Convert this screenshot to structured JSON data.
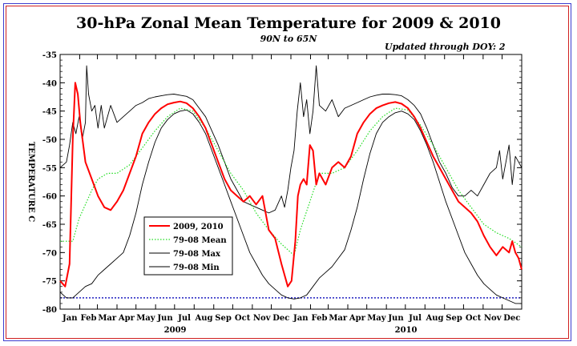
{
  "header": {
    "title": "30-hPa Zonal Mean Temperature for 2009 & 2010",
    "subtitle": "90N to 65N",
    "updated": "Updated through DOY:   2"
  },
  "colors": {
    "red": "#ff0000",
    "green": "#22dd22",
    "black": "#000000",
    "blue": "#2020c0"
  },
  "chart_data": {
    "type": "line",
    "title": "30-hPa Zonal Mean Temperature for 2009 & 2010",
    "ylabel": "TEMPERATURE C",
    "xlabel": "",
    "ylim": [
      -80,
      -35
    ],
    "xlim": [
      0,
      730
    ],
    "yticks": [
      -35,
      -40,
      -45,
      -50,
      -55,
      -60,
      -65,
      -70,
      -75,
      -80
    ],
    "month_labels": [
      "Jan",
      "Feb",
      "Mar",
      "Apr",
      "May",
      "Jun",
      "Jul",
      "Aug",
      "Sep",
      "Oct",
      "Nov",
      "Dec",
      "Jan",
      "Feb",
      "Mar",
      "Apr",
      "May",
      "Jun",
      "Jul",
      "Aug",
      "Sep",
      "Oct",
      "Nov",
      "Dec"
    ],
    "year_labels": [
      {
        "text": "2009",
        "day": 182
      },
      {
        "text": "2010",
        "day": 547
      }
    ],
    "reference_line": {
      "y": -78,
      "style": "dotted"
    },
    "legend_position": "lower-left",
    "series": [
      {
        "name": "2009, 2010",
        "color": "#ff0000",
        "points": [
          [
            0,
            -75
          ],
          [
            8,
            -76
          ],
          [
            15,
            -72
          ],
          [
            20,
            -50
          ],
          [
            24,
            -40
          ],
          [
            28,
            -42
          ],
          [
            32,
            -47
          ],
          [
            40,
            -54
          ],
          [
            50,
            -57
          ],
          [
            60,
            -60
          ],
          [
            70,
            -62
          ],
          [
            80,
            -62.5
          ],
          [
            90,
            -61
          ],
          [
            100,
            -59
          ],
          [
            110,
            -56
          ],
          [
            120,
            -53
          ],
          [
            130,
            -49
          ],
          [
            140,
            -47
          ],
          [
            150,
            -45.5
          ],
          [
            160,
            -44.5
          ],
          [
            170,
            -43.8
          ],
          [
            180,
            -43.5
          ],
          [
            190,
            -43.3
          ],
          [
            200,
            -43.6
          ],
          [
            210,
            -44.5
          ],
          [
            220,
            -46
          ],
          [
            230,
            -48
          ],
          [
            240,
            -51
          ],
          [
            250,
            -54
          ],
          [
            260,
            -57
          ],
          [
            270,
            -59
          ],
          [
            280,
            -60
          ],
          [
            290,
            -61
          ],
          [
            300,
            -60
          ],
          [
            310,
            -61.5
          ],
          [
            320,
            -60
          ],
          [
            330,
            -66
          ],
          [
            340,
            -67.5
          ],
          [
            350,
            -72
          ],
          [
            360,
            -76
          ],
          [
            366,
            -75
          ],
          [
            372,
            -68
          ],
          [
            376,
            -60
          ],
          [
            380,
            -58
          ],
          [
            385,
            -57
          ],
          [
            390,
            -58
          ],
          [
            395,
            -51
          ],
          [
            400,
            -52
          ],
          [
            405,
            -58
          ],
          [
            410,
            -56
          ],
          [
            420,
            -58
          ],
          [
            430,
            -55
          ],
          [
            440,
            -54
          ],
          [
            450,
            -55
          ],
          [
            460,
            -53
          ],
          [
            470,
            -49
          ],
          [
            480,
            -47
          ],
          [
            490,
            -45.5
          ],
          [
            500,
            -44.5
          ],
          [
            510,
            -44
          ],
          [
            520,
            -43.6
          ],
          [
            530,
            -43.4
          ],
          [
            540,
            -43.7
          ],
          [
            550,
            -44.5
          ],
          [
            560,
            -46
          ],
          [
            570,
            -48
          ],
          [
            580,
            -50.5
          ],
          [
            590,
            -53
          ],
          [
            600,
            -55
          ],
          [
            610,
            -57
          ],
          [
            620,
            -59
          ],
          [
            630,
            -61
          ],
          [
            640,
            -62
          ],
          [
            650,
            -63
          ],
          [
            660,
            -64.5
          ],
          [
            670,
            -67
          ],
          [
            680,
            -69
          ],
          [
            690,
            -70.5
          ],
          [
            700,
            -69
          ],
          [
            710,
            -70
          ],
          [
            715,
            -68
          ],
          [
            720,
            -70
          ],
          [
            725,
            -71
          ],
          [
            730,
            -73
          ]
        ]
      },
      {
        "name": "79-08 Mean",
        "color": "#22dd22",
        "points": [
          [
            0,
            -68
          ],
          [
            20,
            -68
          ],
          [
            30,
            -64
          ],
          [
            50,
            -59
          ],
          [
            60,
            -57
          ],
          [
            75,
            -56
          ],
          [
            90,
            -56
          ],
          [
            110,
            -54.5
          ],
          [
            130,
            -51.5
          ],
          [
            150,
            -48.5
          ],
          [
            170,
            -46
          ],
          [
            190,
            -44.5
          ],
          [
            210,
            -45
          ],
          [
            230,
            -48
          ],
          [
            250,
            -52
          ],
          [
            270,
            -56
          ],
          [
            290,
            -59
          ],
          [
            310,
            -63
          ],
          [
            330,
            -66
          ],
          [
            350,
            -68.5
          ],
          [
            365,
            -70
          ],
          [
            370,
            -70.5
          ],
          [
            380,
            -66
          ],
          [
            395,
            -61
          ],
          [
            410,
            -56
          ],
          [
            430,
            -56
          ],
          [
            450,
            -55
          ],
          [
            470,
            -52
          ],
          [
            490,
            -48.5
          ],
          [
            510,
            -46
          ],
          [
            530,
            -44.5
          ],
          [
            550,
            -44.8
          ],
          [
            570,
            -47.5
          ],
          [
            590,
            -51
          ],
          [
            610,
            -55
          ],
          [
            630,
            -59
          ],
          [
            650,
            -62
          ],
          [
            670,
            -65
          ],
          [
            690,
            -66.5
          ],
          [
            710,
            -67.5
          ],
          [
            730,
            -69
          ]
        ]
      },
      {
        "name": "79-08 Max",
        "color": "#000000",
        "points": [
          [
            0,
            -55
          ],
          [
            10,
            -54
          ],
          [
            15,
            -51
          ],
          [
            20,
            -47
          ],
          [
            25,
            -49
          ],
          [
            30,
            -46
          ],
          [
            35,
            -50
          ],
          [
            40,
            -47
          ],
          [
            42,
            -37
          ],
          [
            45,
            -42
          ],
          [
            50,
            -45
          ],
          [
            55,
            -44
          ],
          [
            60,
            -48
          ],
          [
            65,
            -44
          ],
          [
            70,
            -48
          ],
          [
            80,
            -44
          ],
          [
            90,
            -47
          ],
          [
            100,
            -46
          ],
          [
            110,
            -45
          ],
          [
            120,
            -44
          ],
          [
            130,
            -43.5
          ],
          [
            140,
            -42.8
          ],
          [
            150,
            -42.5
          ],
          [
            160,
            -42.3
          ],
          [
            170,
            -42.1
          ],
          [
            180,
            -42.0
          ],
          [
            190,
            -42.2
          ],
          [
            200,
            -42.4
          ],
          [
            210,
            -43
          ],
          [
            220,
            -44.5
          ],
          [
            230,
            -46
          ],
          [
            240,
            -48.5
          ],
          [
            250,
            -51
          ],
          [
            260,
            -54
          ],
          [
            270,
            -57
          ],
          [
            280,
            -59
          ],
          [
            290,
            -61
          ],
          [
            300,
            -61.5
          ],
          [
            310,
            -62
          ],
          [
            320,
            -62.5
          ],
          [
            330,
            -63
          ],
          [
            340,
            -62.5
          ],
          [
            350,
            -60
          ],
          [
            355,
            -62
          ],
          [
            360,
            -59
          ],
          [
            365,
            -55
          ],
          [
            370,
            -52
          ],
          [
            375,
            -45
          ],
          [
            380,
            -40
          ],
          [
            385,
            -46
          ],
          [
            390,
            -43
          ],
          [
            395,
            -49
          ],
          [
            400,
            -45
          ],
          [
            405,
            -37
          ],
          [
            410,
            -44
          ],
          [
            420,
            -45
          ],
          [
            430,
            -43
          ],
          [
            440,
            -46
          ],
          [
            450,
            -44.5
          ],
          [
            460,
            -44
          ],
          [
            470,
            -43.5
          ],
          [
            480,
            -43
          ],
          [
            490,
            -42.5
          ],
          [
            500,
            -42.2
          ],
          [
            510,
            -42
          ],
          [
            520,
            -42
          ],
          [
            530,
            -42.1
          ],
          [
            540,
            -42.3
          ],
          [
            550,
            -43
          ],
          [
            560,
            -44
          ],
          [
            570,
            -45.5
          ],
          [
            580,
            -48
          ],
          [
            590,
            -51
          ],
          [
            600,
            -54
          ],
          [
            610,
            -56
          ],
          [
            620,
            -58.5
          ],
          [
            630,
            -60
          ],
          [
            640,
            -60
          ],
          [
            650,
            -59
          ],
          [
            660,
            -60
          ],
          [
            670,
            -58
          ],
          [
            680,
            -56
          ],
          [
            690,
            -55
          ],
          [
            695,
            -52
          ],
          [
            700,
            -57
          ],
          [
            705,
            -54
          ],
          [
            710,
            -51
          ],
          [
            715,
            -58
          ],
          [
            720,
            -53
          ],
          [
            725,
            -54
          ],
          [
            730,
            -55
          ]
        ]
      },
      {
        "name": "79-08 Min",
        "color": "#000000",
        "points": [
          [
            0,
            -77
          ],
          [
            10,
            -78
          ],
          [
            20,
            -78
          ],
          [
            30,
            -77
          ],
          [
            40,
            -76
          ],
          [
            50,
            -75.5
          ],
          [
            60,
            -74
          ],
          [
            70,
            -73
          ],
          [
            80,
            -72
          ],
          [
            90,
            -71
          ],
          [
            100,
            -70
          ],
          [
            110,
            -67
          ],
          [
            120,
            -63
          ],
          [
            130,
            -58
          ],
          [
            140,
            -54
          ],
          [
            150,
            -50.5
          ],
          [
            160,
            -48
          ],
          [
            170,
            -46.5
          ],
          [
            180,
            -45.5
          ],
          [
            190,
            -45
          ],
          [
            200,
            -44.8
          ],
          [
            210,
            -45.5
          ],
          [
            220,
            -47
          ],
          [
            230,
            -49
          ],
          [
            240,
            -52
          ],
          [
            250,
            -55
          ],
          [
            260,
            -58
          ],
          [
            270,
            -61
          ],
          [
            280,
            -64
          ],
          [
            290,
            -67
          ],
          [
            300,
            -70
          ],
          [
            310,
            -72
          ],
          [
            320,
            -74
          ],
          [
            330,
            -75.5
          ],
          [
            340,
            -76.5
          ],
          [
            350,
            -77.5
          ],
          [
            360,
            -78
          ],
          [
            370,
            -78.2
          ],
          [
            380,
            -78
          ],
          [
            390,
            -77.5
          ],
          [
            400,
            -76
          ],
          [
            410,
            -74.5
          ],
          [
            420,
            -73.5
          ],
          [
            430,
            -72.5
          ],
          [
            440,
            -71
          ],
          [
            450,
            -69.5
          ],
          [
            460,
            -66
          ],
          [
            470,
            -62
          ],
          [
            480,
            -57
          ],
          [
            490,
            -52.5
          ],
          [
            500,
            -49
          ],
          [
            510,
            -47
          ],
          [
            520,
            -46
          ],
          [
            530,
            -45.3
          ],
          [
            540,
            -45
          ],
          [
            550,
            -45.5
          ],
          [
            560,
            -46.5
          ],
          [
            570,
            -48.5
          ],
          [
            580,
            -51
          ],
          [
            590,
            -54
          ],
          [
            600,
            -57.5
          ],
          [
            610,
            -61
          ],
          [
            620,
            -64
          ],
          [
            630,
            -67
          ],
          [
            640,
            -70
          ],
          [
            650,
            -72
          ],
          [
            660,
            -74
          ],
          [
            670,
            -75.5
          ],
          [
            680,
            -76.5
          ],
          [
            690,
            -77.5
          ],
          [
            700,
            -78
          ],
          [
            710,
            -78.5
          ],
          [
            720,
            -79
          ],
          [
            730,
            -79
          ]
        ]
      }
    ]
  }
}
